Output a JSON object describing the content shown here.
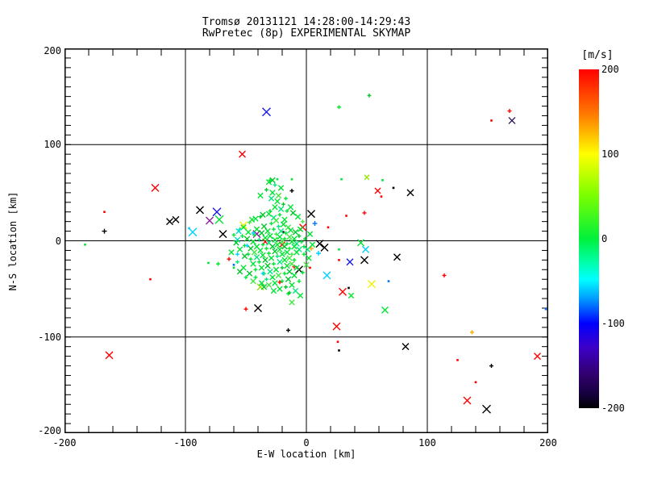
{
  "chart_data": {
    "type": "scatter",
    "title": "Tromsø 20131121 14:28:00-14:29:43",
    "subtitle": "RwPretec (8p) EXPERIMENTAL SKYMAP",
    "xlabel": "E-W location [km]",
    "ylabel": "N-S location [km]",
    "xlim": [
      -200,
      200
    ],
    "ylim": [
      -200,
      200
    ],
    "xticks": [
      -200,
      -100,
      0,
      100,
      200
    ],
    "yticks": [
      200,
      100,
      0,
      -100,
      -200
    ],
    "grid_values": [
      -100,
      0,
      100
    ],
    "x_minor_step": 20,
    "y_minor_step": 10,
    "grid": true,
    "colorbar": {
      "label": "[m/s]",
      "min": -200,
      "max": 200,
      "ticks": [
        200,
        100,
        0,
        -100,
        -200
      ],
      "gradient": [
        [
          "#FF0000",
          0
        ],
        [
          "#FF7800",
          13
        ],
        [
          "#FFFF00",
          25
        ],
        [
          "#7DFF00",
          37
        ],
        [
          "#00F03C",
          50
        ],
        [
          "#00FFAA",
          57
        ],
        [
          "#00FFFF",
          62
        ],
        [
          "#0096FF",
          68
        ],
        [
          "#0000FF",
          75
        ],
        [
          "#3C00C8",
          82
        ],
        [
          "#32006E",
          90
        ],
        [
          "#14003C",
          96
        ],
        [
          "#000000",
          100
        ]
      ]
    },
    "palette": {
      "k": "#000000",
      "r": "#FF0000",
      "o": "#FFA800",
      "y": "#F0F000",
      "yg": "#96E600",
      "g": "#00E632",
      "g2": "#00C828",
      "g3": "#44E644",
      "sg": "#00E87A",
      "t": "#00E0C0",
      "c": "#00D0FF",
      "b": "#0070FF",
      "db": "#1A1AE6",
      "pu": "#8A1AA0",
      "dp": "#32145A"
    },
    "marker_types": {
      "x": "cross",
      "p": "plus",
      "d": "dot"
    },
    "points": [
      [
        -33,
        134,
        "x",
        "db",
        5
      ],
      [
        -53,
        90,
        "x",
        "r",
        4
      ],
      [
        27,
        139,
        "p",
        "g"
      ],
      [
        52,
        151,
        "p",
        "g2"
      ],
      [
        168,
        135,
        "p",
        "r",
        2.5
      ],
      [
        153,
        125,
        "d",
        "r"
      ],
      [
        170,
        125,
        "x",
        "dp",
        4
      ],
      [
        -125,
        55,
        "x",
        "r",
        4.5
      ],
      [
        -167,
        30,
        "d",
        "r"
      ],
      [
        -167,
        10,
        "p",
        "k",
        3
      ],
      [
        -113,
        20,
        "x",
        "k",
        4
      ],
      [
        -108,
        22,
        "x",
        "k",
        4
      ],
      [
        -88,
        32,
        "x",
        "k",
        4.5
      ],
      [
        -74,
        30,
        "x",
        "db",
        5
      ],
      [
        -80,
        21,
        "x",
        "pu",
        4.5
      ],
      [
        -72,
        22,
        "x",
        "g",
        5
      ],
      [
        -94,
        9,
        "x",
        "c",
        5
      ],
      [
        -97,
        13,
        "d",
        "c"
      ],
      [
        -69,
        7,
        "x",
        "k",
        4.5
      ],
      [
        -183,
        -4,
        "d",
        "g"
      ],
      [
        -81,
        -23,
        "d",
        "g"
      ],
      [
        -73,
        -24,
        "p",
        "g"
      ],
      [
        -129,
        -40,
        "d",
        "r"
      ],
      [
        72,
        55,
        "d",
        "k"
      ],
      [
        86,
        50,
        "x",
        "k",
        4
      ],
      [
        75,
        -17,
        "x",
        "k",
        4
      ],
      [
        68,
        -42,
        "d",
        "b"
      ],
      [
        114,
        -36,
        "p",
        "r",
        2.5
      ],
      [
        -163,
        -119,
        "x",
        "r",
        4.5
      ],
      [
        -50,
        -71,
        "p",
        "r",
        2.5
      ],
      [
        -40,
        -70,
        "x",
        "k",
        4.5
      ],
      [
        -15,
        -93,
        "p",
        "k",
        2.5
      ],
      [
        25,
        -89,
        "x",
        "r",
        4.5
      ],
      [
        65,
        -72,
        "x",
        "g",
        4
      ],
      [
        26,
        -105,
        "d",
        "r"
      ],
      [
        27,
        -114,
        "d",
        "k"
      ],
      [
        137,
        -95,
        "p",
        "o",
        2.5
      ],
      [
        82,
        -110,
        "x",
        "k",
        4
      ],
      [
        125,
        -124,
        "d",
        "r"
      ],
      [
        153,
        -130,
        "p",
        "k",
        2.5
      ],
      [
        140,
        -147,
        "d",
        "r"
      ],
      [
        133,
        -166,
        "x",
        "r",
        4.5
      ],
      [
        149,
        -175,
        "x",
        "k",
        5
      ],
      [
        191,
        -120,
        "x",
        "r",
        4
      ],
      [
        198,
        -71,
        "d",
        "b"
      ],
      [
        -52,
        16,
        "x",
        "y",
        4.5
      ],
      [
        -41,
        7,
        "x",
        "pu",
        4.5
      ],
      [
        -12,
        52,
        "p",
        "k",
        2.5
      ],
      [
        4,
        28,
        "x",
        "k",
        4.5
      ],
      [
        -3,
        14,
        "x",
        "r",
        4
      ],
      [
        18,
        14,
        "d",
        "r"
      ],
      [
        33,
        26,
        "d",
        "r"
      ],
      [
        48,
        29,
        "p",
        "r",
        2.5
      ],
      [
        59,
        52,
        "x",
        "r",
        3.5
      ],
      [
        62,
        46,
        "d",
        "r"
      ],
      [
        63,
        63,
        "d",
        "g"
      ],
      [
        11,
        -3,
        "x",
        "k",
        4.5
      ],
      [
        15,
        -7,
        "x",
        "k",
        4.5
      ],
      [
        4,
        -8,
        "p",
        "o",
        3
      ],
      [
        10,
        -13,
        "p",
        "c",
        3
      ],
      [
        36,
        -22,
        "x",
        "db",
        4
      ],
      [
        48,
        -20,
        "x",
        "k",
        4.5
      ],
      [
        49,
        -9,
        "x",
        "c",
        4
      ],
      [
        45,
        -2,
        "x",
        "g",
        4
      ],
      [
        27,
        -20,
        "d",
        "r"
      ],
      [
        3,
        -28,
        "d",
        "r"
      ],
      [
        17,
        -36,
        "x",
        "c",
        4.5
      ],
      [
        -6,
        -30,
        "x",
        "k",
        4.5
      ],
      [
        30,
        -53,
        "x",
        "r",
        4.5
      ],
      [
        35,
        -49,
        "d",
        "k"
      ],
      [
        54,
        -45,
        "x",
        "y",
        4.5
      ],
      [
        -60,
        -25,
        "d",
        "b"
      ],
      [
        -64,
        -19,
        "p",
        "r",
        2.5
      ],
      [
        -22,
        -43,
        "p",
        "r",
        2.5
      ],
      [
        -38,
        -48,
        "x",
        "yg",
        4
      ],
      [
        -34,
        -1,
        "x",
        "r",
        3.5
      ],
      [
        -20,
        -4,
        "x",
        "r",
        3.5
      ],
      [
        7,
        18,
        "p",
        "b",
        3
      ],
      [
        -10,
        -27,
        "p",
        "r",
        2.5
      ],
      [
        50,
        66,
        "x",
        "yg",
        3
      ],
      [
        29,
        64,
        "d",
        "g"
      ],
      [
        27,
        -9,
        "d",
        "g"
      ],
      [
        -19,
        9,
        "d",
        "k"
      ],
      [
        -45,
        22,
        "x",
        "g"
      ],
      [
        -38,
        25,
        "p",
        "g2"
      ],
      [
        -31,
        28,
        "x",
        "g"
      ],
      [
        -27,
        24,
        "x",
        "sg"
      ],
      [
        -22,
        27,
        "p",
        "g"
      ],
      [
        -25,
        21,
        "x",
        "g3"
      ],
      [
        -18,
        22,
        "x",
        "g"
      ],
      [
        -29,
        18,
        "p",
        "g"
      ],
      [
        -35,
        15,
        "x",
        "g2"
      ],
      [
        -41,
        12,
        "x",
        "g"
      ],
      [
        -23,
        15,
        "p",
        "sg"
      ],
      [
        -19,
        17,
        "x",
        "g"
      ],
      [
        -15,
        14,
        "x",
        "g3"
      ],
      [
        -27,
        12,
        "p",
        "g"
      ],
      [
        -32,
        10,
        "x",
        "g"
      ],
      [
        -37,
        8,
        "x",
        "g2"
      ],
      [
        -43,
        6,
        "p",
        "g"
      ],
      [
        -48,
        9,
        "x",
        "g"
      ],
      [
        -21,
        10,
        "x",
        "sg"
      ],
      [
        -17,
        8,
        "p",
        "g"
      ],
      [
        -13,
        11,
        "x",
        "g"
      ],
      [
        -9,
        9,
        "x",
        "g2"
      ],
      [
        -25,
        7,
        "p",
        "g3"
      ],
      [
        -30,
        5,
        "x",
        "g"
      ],
      [
        -34,
        3,
        "x",
        "g"
      ],
      [
        -39,
        1,
        "p",
        "sg"
      ],
      [
        -44,
        -1,
        "x",
        "g"
      ],
      [
        -49,
        2,
        "x",
        "g2"
      ],
      [
        -53,
        5,
        "p",
        "g"
      ],
      [
        -57,
        1,
        "x",
        "t"
      ],
      [
        -22,
        4,
        "x",
        "g"
      ],
      [
        -18,
        2,
        "p",
        "g"
      ],
      [
        -14,
        4,
        "x",
        "g3"
      ],
      [
        -10,
        2,
        "x",
        "g"
      ],
      [
        -6,
        5,
        "p",
        "g2"
      ],
      [
        -26,
        1,
        "x",
        "g"
      ],
      [
        -31,
        -2,
        "x",
        "sg"
      ],
      [
        -36,
        -4,
        "p",
        "g"
      ],
      [
        -41,
        -6,
        "x",
        "g"
      ],
      [
        -46,
        -8,
        "x",
        "g2"
      ],
      [
        -51,
        -5,
        "p",
        "g"
      ],
      [
        -55,
        -9,
        "x",
        "g"
      ],
      [
        -20,
        -1,
        "x",
        "g3"
      ],
      [
        -16,
        -3,
        "p",
        "g"
      ],
      [
        -12,
        -1,
        "x",
        "g"
      ],
      [
        -8,
        -3,
        "x",
        "sg"
      ],
      [
        -4,
        -1,
        "p",
        "g"
      ],
      [
        -24,
        -4,
        "x",
        "g"
      ],
      [
        -28,
        -6,
        "x",
        "g2"
      ],
      [
        -33,
        -8,
        "p",
        "g"
      ],
      [
        -38,
        -10,
        "x",
        "g"
      ],
      [
        -43,
        -12,
        "x",
        "g3"
      ],
      [
        -48,
        -14,
        "p",
        "g"
      ],
      [
        -18,
        -6,
        "x",
        "g2"
      ],
      [
        -14,
        -8,
        "p",
        "g"
      ],
      [
        -10,
        -6,
        "x",
        "g"
      ],
      [
        -6,
        -9,
        "x",
        "sg"
      ],
      [
        -2,
        -6,
        "p",
        "g"
      ],
      [
        -22,
        -9,
        "x",
        "g"
      ],
      [
        -26,
        -11,
        "x",
        "g2"
      ],
      [
        -31,
        -13,
        "p",
        "g"
      ],
      [
        -36,
        -15,
        "x",
        "g"
      ],
      [
        -41,
        -17,
        "x",
        "sg"
      ],
      [
        -46,
        -19,
        "p",
        "g"
      ],
      [
        -51,
        -16,
        "x",
        "g2"
      ],
      [
        -16,
        -12,
        "x",
        "g"
      ],
      [
        -12,
        -14,
        "p",
        "g3"
      ],
      [
        -8,
        -12,
        "x",
        "g"
      ],
      [
        -20,
        -14,
        "x",
        "g"
      ],
      [
        -24,
        -16,
        "p",
        "sg"
      ],
      [
        -29,
        -18,
        "x",
        "g"
      ],
      [
        -34,
        -20,
        "x",
        "g2"
      ],
      [
        -39,
        -22,
        "p",
        "g"
      ],
      [
        -44,
        -24,
        "x",
        "g"
      ],
      [
        -14,
        -18,
        "x",
        "g3"
      ],
      [
        -10,
        -20,
        "p",
        "g"
      ],
      [
        -18,
        -20,
        "x",
        "g"
      ],
      [
        -22,
        -22,
        "x",
        "sg"
      ],
      [
        -27,
        -24,
        "p",
        "g"
      ],
      [
        -32,
        -26,
        "x",
        "g2"
      ],
      [
        -37,
        -28,
        "x",
        "g"
      ],
      [
        -42,
        -30,
        "p",
        "g"
      ],
      [
        -12,
        -24,
        "x",
        "g3"
      ],
      [
        -16,
        -26,
        "x",
        "g"
      ],
      [
        -20,
        -28,
        "p",
        "g2"
      ],
      [
        -25,
        -30,
        "x",
        "g"
      ],
      [
        -30,
        -32,
        "x",
        "sg"
      ],
      [
        -35,
        -34,
        "p",
        "g"
      ],
      [
        -8,
        -28,
        "x",
        "g"
      ],
      [
        -14,
        -32,
        "x",
        "g2"
      ],
      [
        -18,
        -34,
        "p",
        "g"
      ],
      [
        -23,
        -36,
        "x",
        "g3"
      ],
      [
        -28,
        -38,
        "x",
        "g"
      ],
      [
        -33,
        -40,
        "p",
        "sg"
      ],
      [
        -10,
        -36,
        "x",
        "g"
      ],
      [
        -15,
        -40,
        "x",
        "g2"
      ],
      [
        -20,
        -42,
        "p",
        "g"
      ],
      [
        -26,
        -44,
        "x",
        "g"
      ],
      [
        -31,
        -46,
        "x",
        "g3"
      ],
      [
        -6,
        -42,
        "p",
        "g"
      ],
      [
        -12,
        -46,
        "x",
        "g"
      ],
      [
        -17,
        -48,
        "p",
        "g2"
      ],
      [
        -22,
        -50,
        "x",
        "g"
      ],
      [
        -9,
        -52,
        "x",
        "sg"
      ],
      [
        -15,
        -55,
        "p",
        "g"
      ],
      [
        -27,
        -52,
        "x",
        "g"
      ],
      [
        -35,
        -48,
        "x",
        "g2"
      ],
      [
        -3,
        -33,
        "p",
        "g"
      ],
      [
        0,
        -25,
        "x",
        "g3"
      ],
      [
        2,
        -18,
        "x",
        "g"
      ],
      [
        -2,
        -14,
        "p",
        "g"
      ],
      [
        1,
        -9,
        "x",
        "sg"
      ],
      [
        5,
        -4,
        "x",
        "g"
      ],
      [
        -1,
        2,
        "p",
        "g2"
      ],
      [
        3,
        7,
        "x",
        "g"
      ],
      [
        -5,
        12,
        "x",
        "g"
      ],
      [
        -3,
        20,
        "p",
        "g3"
      ],
      [
        -7,
        25,
        "x",
        "g"
      ],
      [
        -11,
        29,
        "x",
        "g2"
      ],
      [
        -16,
        31,
        "p",
        "g"
      ],
      [
        -21,
        33,
        "x",
        "sg"
      ],
      [
        -26,
        35,
        "x",
        "g"
      ],
      [
        -30,
        31,
        "p",
        "g"
      ],
      [
        -36,
        27,
        "x",
        "g2"
      ],
      [
        -42,
        23,
        "x",
        "g"
      ],
      [
        -47,
        19,
        "p",
        "g3"
      ],
      [
        -52,
        14,
        "x",
        "g"
      ],
      [
        -56,
        10,
        "x",
        "t"
      ],
      [
        -60,
        6,
        "p",
        "g"
      ],
      [
        -58,
        -2,
        "x",
        "g2"
      ],
      [
        -62,
        -12,
        "x",
        "g"
      ],
      [
        -57,
        -22,
        "p",
        "sg"
      ],
      [
        -52,
        -28,
        "x",
        "g"
      ],
      [
        -47,
        -34,
        "x",
        "g2"
      ],
      [
        -42,
        -38,
        "p",
        "g"
      ],
      [
        -37,
        -44,
        "x",
        "g"
      ],
      [
        -44,
        -42,
        "x",
        "g3"
      ],
      [
        -50,
        -38,
        "p",
        "g"
      ],
      [
        -55,
        -32,
        "x",
        "g2"
      ],
      [
        -60,
        -28,
        "d",
        "g"
      ],
      [
        -13,
        35,
        "x",
        "g"
      ],
      [
        -19,
        38,
        "p",
        "g2"
      ],
      [
        -24,
        41,
        "x",
        "g"
      ],
      [
        -29,
        44,
        "x",
        "sg"
      ],
      [
        -17,
        44,
        "p",
        "g"
      ],
      [
        -23,
        47,
        "x",
        "g3"
      ],
      [
        -28,
        50,
        "x",
        "g"
      ],
      [
        -33,
        53,
        "p",
        "g2"
      ],
      [
        -38,
        47,
        "x",
        "g"
      ],
      [
        -21,
        55,
        "x",
        "g"
      ],
      [
        -26,
        58,
        "p",
        "sg"
      ],
      [
        -31,
        61,
        "x",
        "g"
      ],
      [
        -24,
        64,
        "d",
        "g"
      ],
      [
        -28,
        63,
        "x",
        "g2"
      ],
      [
        -30,
        63,
        "p",
        "g"
      ],
      [
        -12,
        64,
        "d",
        "g"
      ],
      [
        37,
        -57,
        "x",
        "g"
      ],
      [
        -12,
        -64,
        "x",
        "g3"
      ],
      [
        -5,
        -57,
        "x",
        "g"
      ],
      [
        -14,
        -54,
        "p",
        "g2"
      ],
      [
        -55,
        12,
        "p",
        "t"
      ],
      [
        -49,
        -5,
        "p",
        "c"
      ],
      [
        -57,
        -14,
        "p",
        "c"
      ],
      [
        -36,
        -34,
        "p",
        "c"
      ],
      [
        -44,
        8,
        "p",
        "c"
      ]
    ]
  }
}
